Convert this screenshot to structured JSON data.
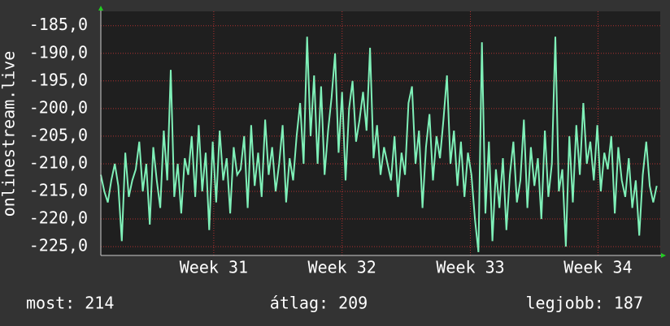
{
  "chart_data": {
    "type": "line",
    "y_label": "onlinestream.live",
    "values": [
      -212,
      -215,
      -217,
      -213,
      -210,
      -214,
      -224,
      -208,
      -216,
      -213,
      -211,
      -206,
      -215,
      -210,
      -221,
      -207,
      -213,
      -218,
      -204,
      -213,
      -193,
      -216,
      -210,
      -219,
      -209,
      -212,
      -205,
      -216,
      -203,
      -215,
      -208,
      -222,
      -206,
      -217,
      -204,
      -213,
      -209,
      -219,
      -207,
      -212,
      -211,
      -205,
      -218,
      -203,
      -214,
      -208,
      -216,
      -202,
      -212,
      -207,
      -215,
      -210,
      -203,
      -217,
      -209,
      -213,
      -205,
      -199,
      -210,
      -187,
      -205,
      -194,
      -210,
      -196,
      -212,
      -204,
      -198,
      -190,
      -208,
      -197,
      -213,
      -200,
      -195,
      -206,
      -202,
      -197,
      -204,
      -189,
      -209,
      -203,
      -212,
      -207,
      -210,
      -213,
      -205,
      -216,
      -208,
      -212,
      -199,
      -196,
      -210,
      -204,
      -218,
      -207,
      -201,
      -213,
      -205,
      -209,
      -202,
      -194,
      -210,
      -204,
      -214,
      -206,
      -216,
      -208,
      -212,
      -220,
      -226,
      -188,
      -219,
      -206,
      -224,
      -211,
      -218,
      -209,
      -222,
      -212,
      -206,
      -217,
      -213,
      -202,
      -218,
      -207,
      -214,
      -209,
      -220,
      -204,
      -216,
      -210,
      -187,
      -215,
      -211,
      -225,
      -205,
      -217,
      -203,
      -212,
      -199,
      -210,
      -206,
      -213,
      -203,
      -215,
      -208,
      -211,
      -205,
      -219,
      -207,
      -213,
      -216,
      -209,
      -218,
      -213,
      -223,
      -212,
      -206,
      -214,
      -217,
      -214
    ],
    "color": "#7ff0b8",
    "xlim": [
      0,
      160
    ],
    "xticks": [
      {
        "value": 32.3,
        "label": "Week 31"
      },
      {
        "value": 69,
        "label": "Week 32"
      },
      {
        "value": 105.7,
        "label": "Week 33"
      },
      {
        "value": 142.2,
        "label": "Week 34"
      }
    ],
    "ylim": [
      -226.6,
      -182.4
    ],
    "yticks": [
      {
        "value": -185,
        "label": "-185,0"
      },
      {
        "value": -190,
        "label": "-190,0"
      },
      {
        "value": -195,
        "label": "-195,0"
      },
      {
        "value": -200,
        "label": "-200,0"
      },
      {
        "value": -205,
        "label": "-205,0"
      },
      {
        "value": -210,
        "label": "-210,0"
      },
      {
        "value": -215,
        "label": "-215,0"
      },
      {
        "value": -220,
        "label": "-220,0"
      },
      {
        "value": -225,
        "label": "-225,0"
      }
    ],
    "grid": true,
    "stats": [
      "most: 214",
      "átlag: 209",
      "legjobb: 187"
    ]
  }
}
